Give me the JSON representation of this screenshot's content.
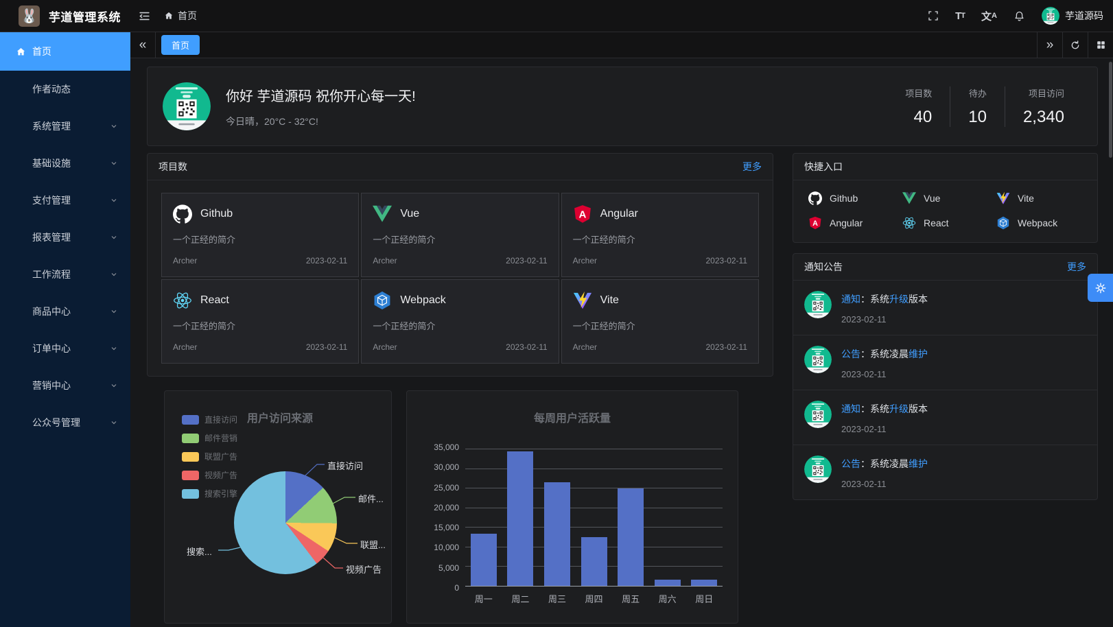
{
  "app": {
    "title": "芋道管理系统",
    "user_name": "芋道源码"
  },
  "header": {
    "breadcrumb_home": "首页",
    "icons": [
      "fullscreen-icon",
      "font-size-icon",
      "locale-icon",
      "bell-icon"
    ]
  },
  "tagbar": {
    "active_tab": "首页"
  },
  "sidebar": {
    "items": [
      {
        "label": "首页",
        "active": true,
        "icon": "home-icon",
        "arrow": false
      },
      {
        "label": "作者动态",
        "active": false,
        "arrow": false
      },
      {
        "label": "系统管理",
        "active": false,
        "arrow": true
      },
      {
        "label": "基础设施",
        "active": false,
        "arrow": true
      },
      {
        "label": "支付管理",
        "active": false,
        "arrow": true
      },
      {
        "label": "报表管理",
        "active": false,
        "arrow": true
      },
      {
        "label": "工作流程",
        "active": false,
        "arrow": true
      },
      {
        "label": "商品中心",
        "active": false,
        "arrow": true
      },
      {
        "label": "订单中心",
        "active": false,
        "arrow": true
      },
      {
        "label": "营销中心",
        "active": false,
        "arrow": true
      },
      {
        "label": "公众号管理",
        "active": false,
        "arrow": true
      }
    ]
  },
  "greeting": {
    "title": "你好 芋道源码 祝你开心每一天!",
    "subtitle": "今日晴，20°C - 32°C!",
    "stats": [
      {
        "label": "项目数",
        "value": "40"
      },
      {
        "label": "待办",
        "value": "10"
      },
      {
        "label": "项目访问",
        "value": "2,340"
      }
    ]
  },
  "projects": {
    "title": "项目数",
    "more": "更多",
    "items": [
      {
        "name": "Github",
        "icon": "github-icon",
        "desc": "一个正经的简介",
        "author": "Archer",
        "date": "2023-02-11"
      },
      {
        "name": "Vue",
        "icon": "vue-icon",
        "desc": "一个正经的简介",
        "author": "Archer",
        "date": "2023-02-11"
      },
      {
        "name": "Angular",
        "icon": "angular-icon",
        "desc": "一个正经的简介",
        "author": "Archer",
        "date": "2023-02-11"
      },
      {
        "name": "React",
        "icon": "react-icon",
        "desc": "一个正经的简介",
        "author": "Archer",
        "date": "2023-02-11"
      },
      {
        "name": "Webpack",
        "icon": "webpack-icon",
        "desc": "一个正经的简介",
        "author": "Archer",
        "date": "2023-02-11"
      },
      {
        "name": "Vite",
        "icon": "vite-icon",
        "desc": "一个正经的简介",
        "author": "Archer",
        "date": "2023-02-11"
      }
    ]
  },
  "quick": {
    "title": "快捷入口",
    "items": [
      {
        "label": "Github",
        "icon": "github-icon"
      },
      {
        "label": "Vue",
        "icon": "vue-icon"
      },
      {
        "label": "Vite",
        "icon": "vite-icon"
      },
      {
        "label": "Angular",
        "icon": "angular-icon"
      },
      {
        "label": "React",
        "icon": "react-icon"
      },
      {
        "label": "Webpack",
        "icon": "webpack-icon"
      }
    ]
  },
  "notices": {
    "title": "通知公告",
    "more": "更多",
    "items": [
      {
        "tag": "通知",
        "mid": "：系统",
        "highlight": "升级",
        "suffix": "版本",
        "date": "2023-02-11"
      },
      {
        "tag": "公告",
        "mid": "：系统凌晨",
        "highlight": "维护",
        "suffix": "",
        "date": "2023-02-11"
      },
      {
        "tag": "通知",
        "mid": "：系统",
        "highlight": "升级",
        "suffix": "版本",
        "date": "2023-02-11"
      },
      {
        "tag": "公告",
        "mid": "：系统凌晨",
        "highlight": "维护",
        "suffix": "",
        "date": "2023-02-11"
      }
    ]
  },
  "chart_data": [
    {
      "type": "pie",
      "title": "用户访问来源",
      "legend_position": "left",
      "labels": [
        "直接访问",
        "邮件营销",
        "联盟广告",
        "视频广告",
        "搜索引擎"
      ],
      "callout_labels": [
        "直接访问",
        "邮件...",
        "联盟...",
        "视频广告",
        "搜索..."
      ],
      "values": [
        335,
        310,
        234,
        135,
        1548
      ],
      "colors": [
        "#5470c6",
        "#91cc75",
        "#fac858",
        "#ee6666",
        "#73c0de"
      ]
    },
    {
      "type": "bar",
      "title": "每周用户活跃量",
      "categories": [
        "周一",
        "周二",
        "周三",
        "周四",
        "周五",
        "周六",
        "周日"
      ],
      "values": [
        13300,
        34300,
        26500,
        12500,
        24800,
        1600,
        1600
      ],
      "ylim": [
        0,
        35000
      ],
      "yticks": [
        "35,000",
        "30,000",
        "25,000",
        "20,000",
        "15,000",
        "10,000",
        "5,000",
        "0"
      ],
      "bar_color": "#5470c6",
      "grid": true,
      "legend_position": "none"
    }
  ],
  "colors": {
    "primary": "#409eff",
    "sidebar": "#0a1c33",
    "avatar_green": "#11b98f"
  }
}
